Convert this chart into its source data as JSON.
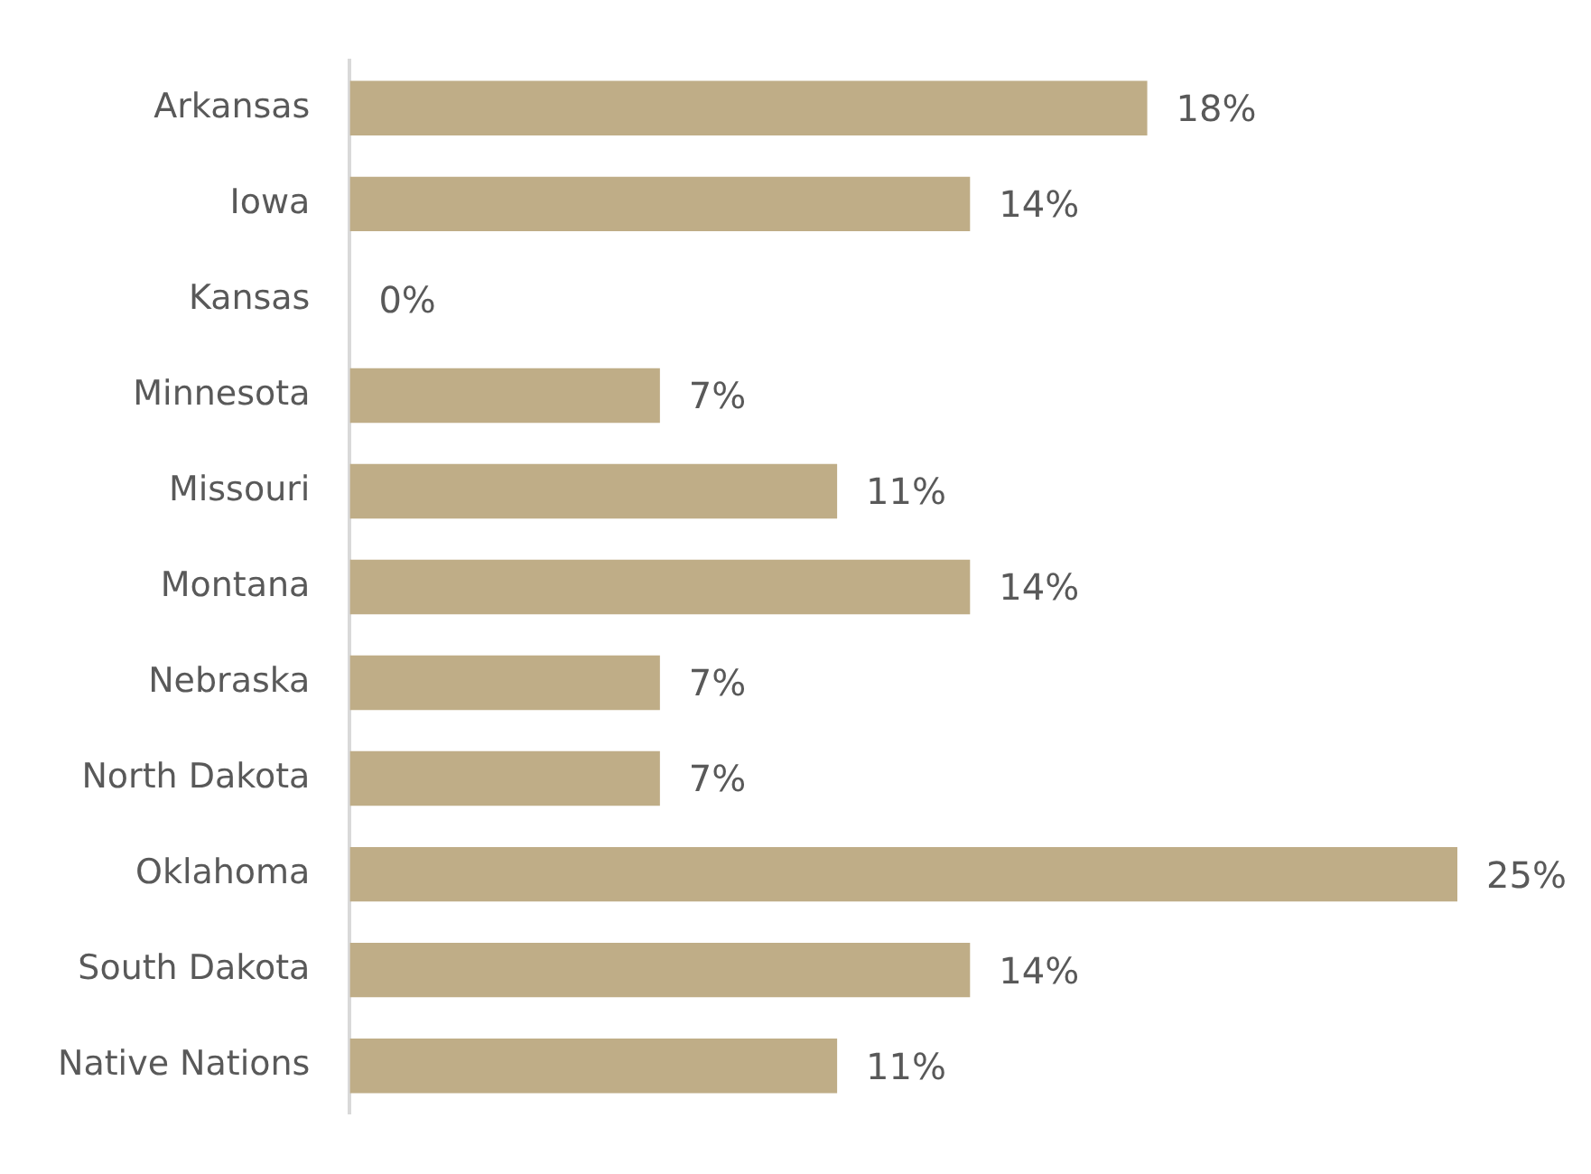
{
  "chart_data": {
    "type": "bar",
    "orientation": "horizontal",
    "categories": [
      "Arkansas",
      "Iowa",
      "Kansas",
      "Minnesota",
      "Missouri",
      "Montana",
      "Nebraska",
      "North Dakota",
      "Oklahoma",
      "South Dakota",
      "Native Nations"
    ],
    "values": [
      18,
      14,
      0,
      7,
      11,
      14,
      7,
      7,
      25,
      14,
      11
    ],
    "value_labels": [
      "18%",
      "14%",
      "0%",
      "7%",
      "11%",
      "14%",
      "7%",
      "7%",
      "25%",
      "14%",
      "11%"
    ],
    "color": "#bfad87"
  }
}
